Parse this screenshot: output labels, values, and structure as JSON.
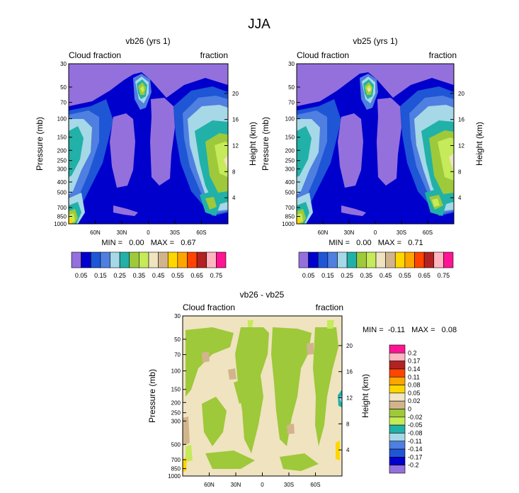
{
  "figure": {
    "title": "JJA"
  },
  "level_colors": [
    "#9370db",
    "#0000cd",
    "#1e56d6",
    "#4f7fe0",
    "#a6d8e7",
    "#21b1a8",
    "#9ec93a",
    "#c5ea5a",
    "#f0e3c0",
    "#d2b48c",
    "#ffd700",
    "#ffa500",
    "#ff4500",
    "#b22222",
    "#ffb6c1",
    "#ff1493"
  ],
  "chart_data": [
    {
      "type": "contour",
      "title": "vb26 (yrs 1)",
      "left_label": "Cloud fraction",
      "right_label": "fraction",
      "ylabel": "Pressure (mb)",
      "y2label": "Height (km)",
      "pressure_ticks": [
        "30",
        "50",
        "70",
        "100",
        "150",
        "200",
        "250",
        "300",
        "400",
        "500",
        "700",
        "850",
        "1000"
      ],
      "height_ticks": [
        "20",
        "16",
        "12",
        "8",
        "4"
      ],
      "lat_ticks": [
        "60N",
        "30N",
        "0",
        "30S",
        "60S"
      ],
      "min_max": "MIN =   0.00   MAX =   0.67",
      "colorbar_labels": [
        "0.05",
        "0.15",
        "0.25",
        "0.35",
        "0.45",
        "0.55",
        "0.65",
        "0.75"
      ]
    },
    {
      "type": "contour",
      "title": "vb25 (yrs 1)",
      "left_label": "Cloud fraction",
      "right_label": "fraction",
      "ylabel": "Pressure (mb)",
      "y2label": "Height (km)",
      "pressure_ticks": [
        "30",
        "50",
        "70",
        "100",
        "150",
        "200",
        "250",
        "300",
        "400",
        "500",
        "700",
        "850",
        "1000"
      ],
      "height_ticks": [
        "20",
        "16",
        "12",
        "8",
        "4"
      ],
      "lat_ticks": [
        "60N",
        "30N",
        "0",
        "30S",
        "60S"
      ],
      "min_max": "MIN =   0.00   MAX =   0.71",
      "colorbar_labels": [
        "0.05",
        "0.15",
        "0.25",
        "0.35",
        "0.45",
        "0.55",
        "0.65",
        "0.75"
      ]
    },
    {
      "type": "contour",
      "title": "vb26 - vb25",
      "left_label": "Cloud fraction",
      "right_label": "fraction",
      "ylabel": "Pressure (mb)",
      "y2label": "Height (km)",
      "pressure_ticks": [
        "30",
        "50",
        "70",
        "100",
        "150",
        "200",
        "250",
        "300",
        "500",
        "700",
        "850",
        "1000"
      ],
      "height_ticks": [
        "20",
        "16",
        "12",
        "8",
        "4"
      ],
      "lat_ticks": [
        "60N",
        "30N",
        "0",
        "30S",
        "60S"
      ],
      "min_max": "MIN =  -0.11   MAX =   0.08",
      "colorbar_labels": [
        "0.2",
        "0.17",
        "0.14",
        "0.11",
        "0.08",
        "0.05",
        "0.02",
        "0",
        "-0.02",
        "-0.05",
        "-0.08",
        "-0.11",
        "-0.14",
        "-0.17",
        "-0.2"
      ],
      "colorbar_colors": [
        "#ff1493",
        "#ffb6c1",
        "#b22222",
        "#ff4500",
        "#ffa500",
        "#ffd700",
        "#f2e6c8",
        "#d2b48c",
        "#9ec93a",
        "#c5ea5a",
        "#21b1a8",
        "#a6d8e7",
        "#4f7fe0",
        "#1e56d6",
        "#0000cd",
        "#9370db"
      ]
    }
  ]
}
